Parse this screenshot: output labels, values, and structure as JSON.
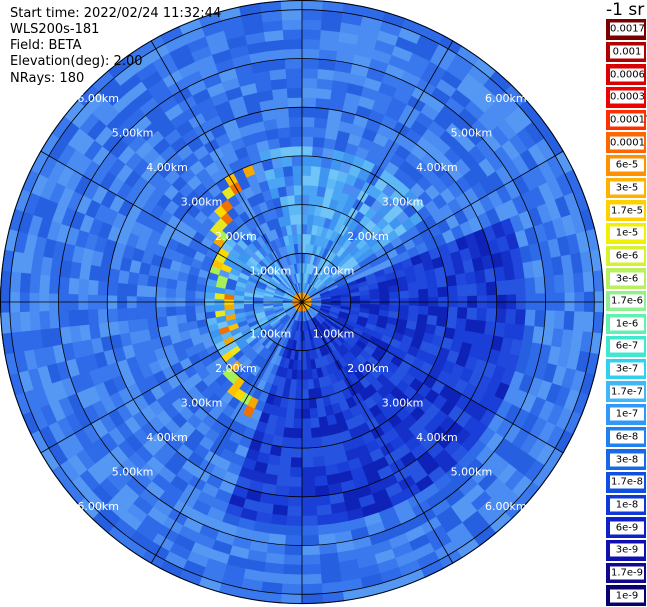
{
  "header": {
    "start_time": "Start time: 2022/02/24 11:32:44",
    "instrument": "WLS200s-181",
    "field": "Field: BETA",
    "elevation": "Elevation(deg): 2.00",
    "nrays": "NRays: 180"
  },
  "colorbar": {
    "title": "-1 sr",
    "levels": [
      "0.0017",
      "0.001",
      "0.0006",
      "0.0003",
      "0.00017",
      "0.0001",
      "6e-5",
      "3e-5",
      "1.7e-5",
      "1e-5",
      "6e-6",
      "3e-6",
      "1.7e-6",
      "1e-6",
      "6e-7",
      "3e-7",
      "1.7e-7",
      "1e-7",
      "6e-8",
      "3e-8",
      "1.7e-8",
      "1e-8",
      "6e-9",
      "3e-9",
      "1.7e-9",
      "1e-9"
    ],
    "colors": [
      "#7a0000",
      "#b00000",
      "#d80000",
      "#f00000",
      "#ff3000",
      "#ff6600",
      "#ff9000",
      "#ffb000",
      "#ffd000",
      "#f0f000",
      "#d8f030",
      "#b8f060",
      "#90f090",
      "#60f0b0",
      "#40e8d0",
      "#30d0f0",
      "#40b8f8",
      "#3098f8",
      "#2080f0",
      "#1868e8",
      "#1050e0",
      "#1038d8",
      "#1020c8",
      "#1010b0",
      "#100890",
      "#080070"
    ]
  },
  "chart_data": {
    "type": "heatmap",
    "projection": "polar PPI",
    "field": "BETA",
    "elevation_deg": 2.0,
    "nrays": 180,
    "range_rings_km": [
      1.0,
      2.0,
      3.0,
      4.0,
      5.0,
      6.0
    ],
    "ring_labels": [
      "1.00km",
      "2.00km",
      "3.00km",
      "4.00km",
      "5.00km",
      "6.00km"
    ],
    "max_range_km": 6.2,
    "spoke_angles_deg": [
      0,
      30,
      60,
      90,
      120,
      150,
      180,
      210,
      240,
      270,
      300,
      330
    ],
    "color_scale": "log10 backscatter, 1e-9 to 0.0017 sr-1",
    "background_level": "3e-8 to 1e-7",
    "features": [
      {
        "region": "east and south sector",
        "level": "6e-9 to 3e-8"
      },
      {
        "region": "north-east low-signal wedge",
        "level": "3e-7 to 1e-6"
      },
      {
        "region": "western cloud band, 2.0-4.5 km",
        "level": "3e-5 to 0.0001"
      },
      {
        "region": "origin within 0.3 km",
        "level": "0.0001 to 0.0003"
      }
    ]
  }
}
